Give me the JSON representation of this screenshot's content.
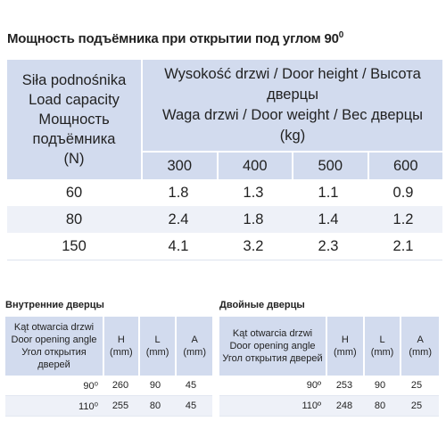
{
  "title": "Мощность подъёмника при открытии под углом 90",
  "title_sup": "0",
  "main_table": {
    "capacity_header": [
      "Siła podnośnika",
      "Load capacity",
      "Мощность",
      "подъёмника",
      "(N)"
    ],
    "door_header": [
      "Wysokość drzwi / Door height / Высота",
      "дверцы",
      "Waga drzwi / Door weight / Вес дверцы",
      "(kg)"
    ],
    "heights": [
      "300",
      "400",
      "500",
      "600"
    ],
    "rows": [
      {
        "force": "60",
        "values": [
          "1.8",
          "1.3",
          "1.1",
          "0.9"
        ]
      },
      {
        "force": "80",
        "values": [
          "2.4",
          "1.8",
          "1.4",
          "1.2"
        ]
      },
      {
        "force": "150",
        "values": [
          "4.1",
          "3.2",
          "2.3",
          "2.1"
        ]
      }
    ]
  },
  "inner_doors": {
    "title": "Внутренние дверцы",
    "header": {
      "angle": [
        "Kąt otwarcia drzwi",
        "Door opening angle",
        "Угол открытия дверей"
      ],
      "h": [
        "H",
        "(mm)"
      ],
      "l": [
        "L",
        "(mm)"
      ],
      "a": [
        "A",
        "(mm)"
      ]
    },
    "rows": [
      {
        "angle": "90⁰",
        "h": "260",
        "l": "90",
        "a": "45"
      },
      {
        "angle": "110⁰",
        "h": "255",
        "l": "80",
        "a": "45"
      }
    ]
  },
  "double_doors": {
    "title": "Двойные дверцы",
    "header": {
      "angle": [
        "Kąt otwarcia drzwi",
        "Door opening angle",
        "Угол открытия дверей"
      ],
      "h": [
        "H",
        "(mm)"
      ],
      "l": [
        "L",
        "(mm)"
      ],
      "a": [
        "A",
        "(mm)"
      ]
    },
    "rows": [
      {
        "angle": "90º",
        "h": "253",
        "l": "90",
        "a": "25"
      },
      {
        "angle": "110º",
        "h": "248",
        "l": "80",
        "a": "25"
      }
    ]
  },
  "colors": {
    "header_bg": "#d2dbee",
    "row_alt_bg": "#eef1f8"
  }
}
